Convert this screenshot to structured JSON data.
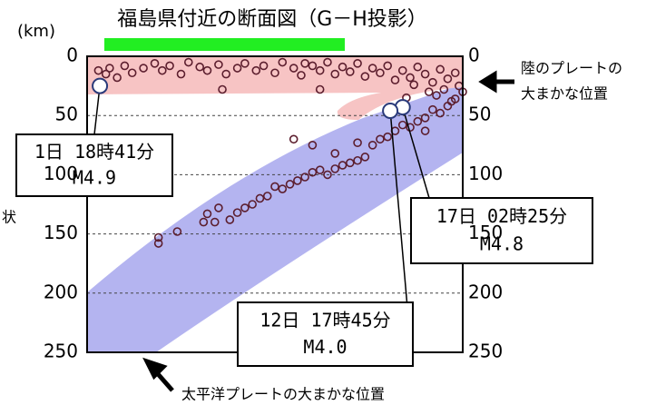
{
  "chart_data": {
    "type": "scatter",
    "title": "福島県付近の断面図（G－H投影）",
    "y_unit": "(km)",
    "side_label": "状",
    "land_plate_label": [
      "陸のプレートの",
      "大まかな位置"
    ],
    "pacific_plate_label": "太平洋プレートの大まかな位置",
    "color": "#5c1e2e",
    "grid": true,
    "y_inverted": true,
    "xlim": [
      0,
      100
    ],
    "ylim": [
      0,
      250
    ],
    "yticks": [
      0,
      50,
      100,
      150,
      200,
      250
    ],
    "x": [
      3,
      5,
      6,
      8,
      10,
      12,
      15,
      18,
      20,
      22,
      25,
      27,
      30,
      32,
      35,
      37,
      40,
      42,
      45,
      47,
      50,
      52,
      55,
      57,
      60,
      62,
      64,
      66,
      68,
      70,
      72,
      74,
      76,
      78,
      80,
      82,
      84,
      86,
      88,
      90,
      92,
      94,
      96,
      98,
      99,
      95,
      91,
      87,
      85,
      93,
      97,
      62,
      58,
      36,
      100,
      98,
      96,
      94,
      92,
      90,
      88,
      86,
      84,
      82,
      80,
      78,
      76,
      74,
      72,
      70,
      68,
      66,
      64,
      62,
      60,
      58,
      56,
      54,
      52,
      50,
      48,
      46,
      44,
      42,
      40,
      38,
      35,
      34,
      32,
      31,
      24,
      19,
      19,
      55,
      72,
      90,
      60,
      66
    ],
    "values": [
      12,
      15,
      10,
      18,
      8,
      14,
      10,
      6,
      12,
      8,
      15,
      5,
      9,
      12,
      7,
      15,
      10,
      6,
      12,
      8,
      14,
      5,
      10,
      16,
      8,
      12,
      5,
      15,
      9,
      13,
      6,
      17,
      10,
      14,
      8,
      20,
      12,
      18,
      9,
      15,
      22,
      11,
      19,
      14,
      25,
      28,
      30,
      24,
      35,
      33,
      38,
      28,
      6,
      28,
      30,
      36,
      42,
      48,
      45,
      52,
      55,
      60,
      58,
      63,
      68,
      70,
      75,
      85,
      88,
      90,
      92,
      95,
      100,
      96,
      98,
      102,
      105,
      108,
      112,
      110,
      118,
      120,
      125,
      128,
      132,
      138,
      128,
      140,
      133,
      140,
      148,
      158,
      153,
      70,
      73,
      63,
      75,
      82
    ],
    "events": [
      {
        "date": "1日 18時41分",
        "magnitude": "M4.9",
        "x": 3.4,
        "value": 25
      },
      {
        "date": "17日 02時25分",
        "magnitude": "M4.8",
        "x": 84,
        "value": 43
      },
      {
        "date": "12日 17時45分",
        "magnitude": "M4.0",
        "x": 80.7,
        "value": 46
      }
    ]
  }
}
